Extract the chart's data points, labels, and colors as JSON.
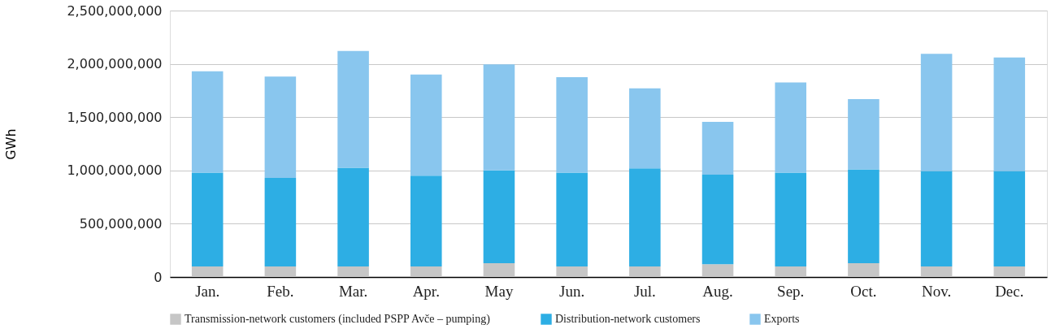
{
  "chart_data": {
    "type": "bar",
    "stacked": true,
    "ylabel": "GWh",
    "categories": [
      "Jan.",
      "Feb.",
      "Mar.",
      "Apr.",
      "May",
      "Jun.",
      "Jul.",
      "Aug.",
      "Sep.",
      "Oct.",
      "Nov.",
      "Dec."
    ],
    "series": [
      {
        "name": "Transmission-network customers (included PSPP Avče – pumping)",
        "color": "#c6c6c6",
        "values": [
          100000000,
          100000000,
          100000000,
          100000000,
          130000000,
          100000000,
          100000000,
          120000000,
          100000000,
          130000000,
          100000000,
          100000000
        ]
      },
      {
        "name": "Distribution-network customers",
        "color": "#2daee4",
        "values": [
          880000000,
          830000000,
          925000000,
          850000000,
          870000000,
          880000000,
          920000000,
          840000000,
          880000000,
          880000000,
          895000000,
          895000000
        ]
      },
      {
        "name": "Exports",
        "color": "#89c6ee",
        "values": [
          950000000,
          950000000,
          1095000000,
          950000000,
          995000000,
          895000000,
          750000000,
          495000000,
          845000000,
          660000000,
          1100000000,
          1065000000
        ]
      }
    ],
    "ylim": [
      0,
      2500000000
    ],
    "yticks": [
      {
        "value": 0,
        "label": "0"
      },
      {
        "value": 500000000,
        "label": "500,000,000"
      },
      {
        "value": 1000000000,
        "label": "1,000,000,000"
      },
      {
        "value": 1500000000,
        "label": "1,500,000,000"
      },
      {
        "value": 2000000000,
        "label": "2,000,000,000"
      },
      {
        "value": 2500000000,
        "label": "2,500,000,000"
      }
    ],
    "grid": "y",
    "legend": "bottom"
  }
}
